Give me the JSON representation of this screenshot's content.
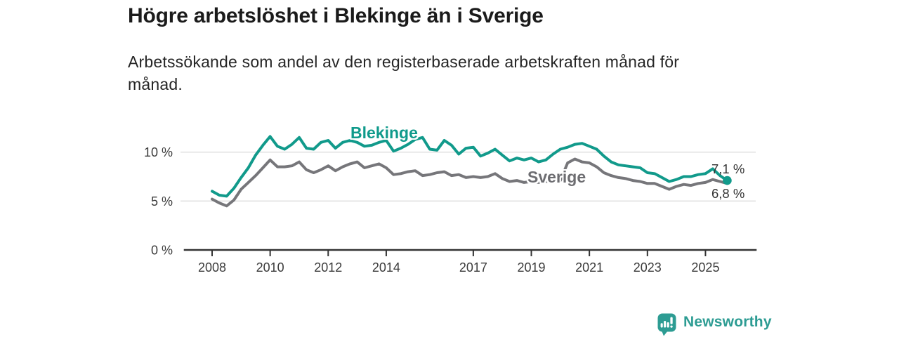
{
  "title": "Högre arbetslöshet i Blekinge än i Sverige",
  "subtitle_lines": [
    "Arbetssökande som andel av den registerbaserade arbetskraften månad för",
    "månad."
  ],
  "colors": {
    "blekinge": "#119a8b",
    "sverige": "#76767a",
    "grid": "#dcdcdc",
    "axis": "#333333",
    "tick_text": "#3b3b3b",
    "end_label_text": "#333333",
    "logo_teal": "#2d9c93"
  },
  "annotations": {
    "blekinge_label": "Blekinge",
    "sverige_label": "Sverige",
    "end_value_blekinge": "7,1 %",
    "end_value_sverige": "6,8 %"
  },
  "logo": {
    "text": "Newsworthy"
  },
  "chart_data": {
    "type": "line",
    "title": "Högre arbetslöshet i Blekinge än i Sverige",
    "unit": "percent of registered labour force",
    "x_start": 2008.0,
    "x_step": 0.25,
    "x_end": 2025.75,
    "xlim": [
      2007.1,
      2026.7
    ],
    "ylim": [
      0,
      12.6
    ],
    "grid": "horizontal",
    "legend_position": "inline-labels",
    "x_ticks": [
      {
        "value": 2008,
        "label": "2008"
      },
      {
        "value": 2010,
        "label": "2010"
      },
      {
        "value": 2012,
        "label": "2012"
      },
      {
        "value": 2014,
        "label": "2014"
      },
      {
        "value": 2017,
        "label": "2017"
      },
      {
        "value": 2019,
        "label": "2019"
      },
      {
        "value": 2021,
        "label": "2021"
      },
      {
        "value": 2023,
        "label": "2023"
      },
      {
        "value": 2025,
        "label": "2025"
      }
    ],
    "y_ticks": [
      {
        "value": 0,
        "label": "0 %"
      },
      {
        "value": 5,
        "label": "5 %"
      },
      {
        "value": 10,
        "label": "10 %"
      }
    ],
    "series": [
      {
        "name": "Blekinge",
        "color": "#119a8b",
        "end_label": "7,1 %",
        "end_marker": true,
        "values": [
          6.0,
          5.6,
          5.5,
          6.3,
          7.4,
          8.4,
          9.7,
          10.7,
          11.6,
          10.6,
          10.3,
          10.8,
          11.5,
          10.4,
          10.3,
          11.0,
          11.2,
          10.4,
          11.0,
          11.2,
          11.0,
          10.6,
          10.7,
          11.0,
          11.2,
          10.1,
          10.4,
          10.8,
          11.3,
          11.5,
          10.3,
          10.2,
          11.2,
          10.7,
          9.8,
          10.4,
          10.5,
          9.6,
          9.9,
          10.3,
          9.7,
          9.1,
          9.4,
          9.2,
          9.4,
          9.0,
          9.2,
          9.8,
          10.3,
          10.5,
          10.8,
          10.9,
          10.6,
          10.3,
          9.6,
          9.0,
          8.7,
          8.6,
          8.5,
          8.4,
          7.9,
          7.8,
          7.4,
          7.0,
          7.2,
          7.5,
          7.5,
          7.7,
          7.8,
          8.3,
          7.6,
          7.1
        ]
      },
      {
        "name": "Sverige",
        "color": "#76767a",
        "end_label": "6,8 %",
        "end_marker": false,
        "values": [
          5.2,
          4.8,
          4.5,
          5.1,
          6.2,
          6.9,
          7.6,
          8.4,
          9.2,
          8.5,
          8.5,
          8.6,
          9.0,
          8.2,
          7.9,
          8.2,
          8.6,
          8.1,
          8.5,
          8.8,
          9.0,
          8.4,
          8.6,
          8.8,
          8.4,
          7.7,
          7.8,
          8.0,
          8.1,
          7.6,
          7.7,
          7.9,
          8.0,
          7.6,
          7.7,
          7.4,
          7.5,
          7.4,
          7.5,
          7.8,
          7.3,
          7.0,
          7.1,
          6.9,
          7.0,
          6.9,
          7.0,
          7.0,
          7.1,
          8.9,
          9.3,
          9.0,
          8.9,
          8.5,
          7.9,
          7.6,
          7.4,
          7.3,
          7.1,
          7.0,
          6.8,
          6.8,
          6.5,
          6.2,
          6.5,
          6.7,
          6.6,
          6.8,
          6.9,
          7.2,
          7.0,
          6.8
        ]
      }
    ]
  }
}
